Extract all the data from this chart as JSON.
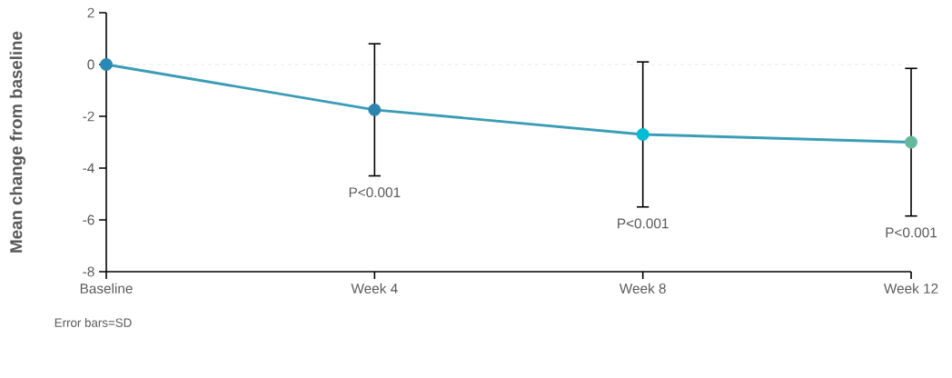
{
  "chart_data": {
    "type": "line",
    "ylabel": "Mean change from baseline",
    "categories": [
      "Baseline",
      "Week 4",
      "Week 8",
      "Week 12"
    ],
    "series": [
      {
        "color": "#3a9db5",
        "colors": [
          "#2a8ab5",
          "#2a84ad",
          "#00bcd4",
          "#66b89c"
        ],
        "values": [
          0,
          -1.75,
          -2.7,
          -3.0
        ],
        "errors": [
          null,
          2.55,
          2.8,
          2.85
        ]
      }
    ],
    "ylim": [
      -8,
      2
    ],
    "yticks": [
      -8,
      -6,
      -4,
      -2,
      0,
      2
    ],
    "marker": "circle",
    "grid": false,
    "ref_lines": [
      {
        "axis": "y",
        "value": 0,
        "color": "#e3e9ef",
        "line_style": "dashed"
      }
    ],
    "annotations": [
      "P<0.001",
      "P<0.001",
      "P<0.001",
      "Error bars=SD"
    ]
  }
}
